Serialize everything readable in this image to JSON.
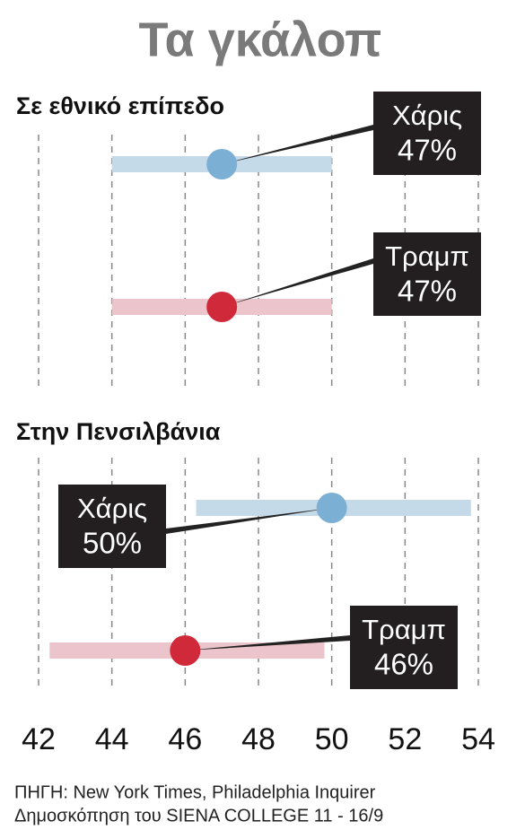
{
  "title": "Τα γκάλοπ",
  "chart_data": [
    {
      "type": "dot-range",
      "subtitle": "Σε εθνικό επίπεδο",
      "xlim": [
        42,
        54
      ],
      "xticks": [
        42,
        44,
        46,
        48,
        50,
        52,
        54
      ],
      "grid": true,
      "series": [
        {
          "name": "Χάρις",
          "color": "#7bafd4",
          "range_color": "#c5dae8",
          "values": [
            47
          ],
          "lows": [
            44
          ],
          "highs": [
            50
          ],
          "value_labels": [
            "47%"
          ]
        },
        {
          "name": "Τραμπ",
          "color": "#d0293a",
          "range_color": "#ebc5cb",
          "values": [
            47
          ],
          "lows": [
            44
          ],
          "highs": [
            50
          ],
          "value_labels": [
            "47%"
          ]
        }
      ]
    },
    {
      "type": "dot-range",
      "subtitle": "Στην Πενσιλβάνια",
      "xlim": [
        42,
        54
      ],
      "xticks": [
        42,
        44,
        46,
        48,
        50,
        52,
        54
      ],
      "grid": true,
      "series": [
        {
          "name": "Χάρις",
          "color": "#7bafd4",
          "range_color": "#c5dae8",
          "values": [
            50
          ],
          "lows": [
            46.3
          ],
          "highs": [
            53.8
          ],
          "value_labels": [
            "50%"
          ]
        },
        {
          "name": "Τραμπ",
          "color": "#d0293a",
          "range_color": "#ebc5cb",
          "values": [
            46
          ],
          "lows": [
            42.3
          ],
          "highs": [
            49.8
          ],
          "value_labels": [
            "46%"
          ]
        }
      ]
    }
  ],
  "source": [
    "ΠΗΓΗ: New York Times, Philadelphia Inquirer",
    "Δημοσκόπηση του SIENA COLLEGE 11 - 16/9"
  ]
}
